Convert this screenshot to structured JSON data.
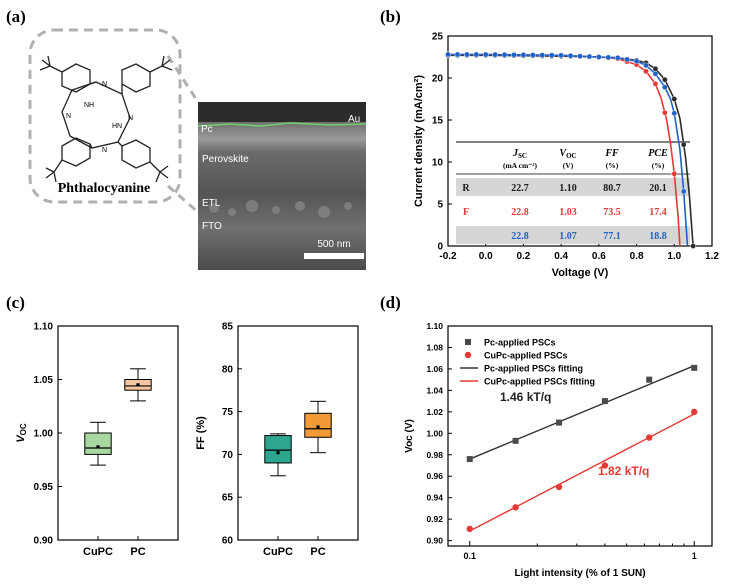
{
  "panel_labels": {
    "a": "(a)",
    "b": "(b)",
    "c": "(c)",
    "d": "(d)"
  },
  "molecule": {
    "name": "Phthalocyanine",
    "atom_nh": "NH",
    "atom_hn": "HN",
    "atom_n": "N"
  },
  "sem": {
    "labels": {
      "au": "Au",
      "pc": "Pc",
      "perovskite": "Perovskite",
      "etl": "ETL",
      "fto": "FTO"
    },
    "scale_bar": "500 nm"
  },
  "chart_data": [
    {
      "id": "jv",
      "type": "line",
      "xlabel": "Voltage (V)",
      "ylabel": "Current density (mA/cm²)",
      "xlim": [
        -0.2,
        1.2
      ],
      "ylim": [
        0,
        25
      ],
      "xticks": [
        "-0.2",
        "0.0",
        "0.2",
        "0.4",
        "0.6",
        "0.8",
        "1.0",
        "1.2"
      ],
      "yticks": [
        "0",
        "5",
        "10",
        "15",
        "20",
        "25"
      ],
      "series": [
        {
          "color": "#2b2b2b",
          "jsc": 22.7,
          "voc": 1.1,
          "x": [
            -0.2,
            0.0,
            0.2,
            0.4,
            0.6,
            0.7,
            0.8,
            0.85,
            0.9,
            0.95,
            1.0,
            1.03,
            1.06,
            1.08,
            1.1
          ],
          "y": [
            22.7,
            22.7,
            22.65,
            22.6,
            22.5,
            22.4,
            22.1,
            21.8,
            21.1,
            19.8,
            17.5,
            15.2,
            10.5,
            6.0,
            0.0
          ]
        },
        {
          "color": "#e53935",
          "jsc": 22.8,
          "voc": 1.03,
          "x": [
            -0.2,
            0.0,
            0.2,
            0.4,
            0.6,
            0.7,
            0.8,
            0.85,
            0.9,
            0.93,
            0.96,
            0.98,
            1.0,
            1.02,
            1.03
          ],
          "y": [
            22.8,
            22.8,
            22.75,
            22.7,
            22.5,
            22.3,
            21.6,
            20.8,
            19.3,
            17.6,
            15.0,
            12.2,
            8.6,
            3.5,
            0.0
          ]
        },
        {
          "color": "#1e62c9",
          "jsc": 22.8,
          "voc": 1.07,
          "x": [
            -0.2,
            0.0,
            0.2,
            0.4,
            0.6,
            0.7,
            0.8,
            0.85,
            0.9,
            0.95,
            0.98,
            1.0,
            1.03,
            1.05,
            1.07
          ],
          "y": [
            22.8,
            22.8,
            22.75,
            22.7,
            22.5,
            22.4,
            22.0,
            21.5,
            20.5,
            18.9,
            17.5,
            15.8,
            11.5,
            6.5,
            0.0
          ]
        }
      ],
      "table": {
        "headers": [
          {
            "main": "J",
            "sub": "SC",
            "unit": "(mA cm⁻²)"
          },
          {
            "main": "V",
            "sub": "OC",
            "unit": "(V)"
          },
          {
            "main": "FF",
            "sub": "",
            "unit": "(%)"
          },
          {
            "main": "PCE",
            "sub": "",
            "unit": "(%)"
          }
        ],
        "rows": [
          {
            "label": "R",
            "values": [
              "22.7",
              "1.10",
              "80.7",
              "20.1"
            ],
            "color": "#1b1b1b",
            "bg": "#d6d6d6"
          },
          {
            "label": "F",
            "values": [
              "22.8",
              "1.03",
              "73.5",
              "17.4"
            ],
            "color": "#e53935",
            "bg": "#ffffff"
          },
          {
            "label": "",
            "values": [
              "22.8",
              "1.07",
              "77.1",
              "18.8"
            ],
            "color": "#1e62c9",
            "bg": "#d6d6d6"
          }
        ]
      }
    },
    {
      "id": "voc_box",
      "type": "box",
      "ylabel": "V",
      "ylabel_sub": "OC",
      "ylim": [
        0.9,
        1.1
      ],
      "yticks": [
        "0.90",
        "0.95",
        "1.00",
        "1.05",
        "1.10"
      ],
      "categories": [
        "CuPC",
        "PC"
      ],
      "boxes": [
        {
          "min": 0.97,
          "q1": 0.98,
          "median": 0.986,
          "q3": 1.0,
          "max": 1.01,
          "mean": 0.987,
          "fill": "#a8d8a0"
        },
        {
          "min": 1.03,
          "q1": 1.04,
          "median": 1.044,
          "q3": 1.05,
          "max": 1.06,
          "mean": 1.045,
          "fill": "#f7c59f"
        }
      ]
    },
    {
      "id": "ff_box",
      "type": "box",
      "ylabel": "FF (%)",
      "ylim": [
        60,
        85
      ],
      "yticks": [
        "60",
        "65",
        "70",
        "75",
        "80",
        "85"
      ],
      "categories": [
        "CuPC",
        "PC"
      ],
      "boxes": [
        {
          "min": 67.5,
          "q1": 69.0,
          "median": 70.5,
          "q3": 72.2,
          "max": 72.4,
          "mean": 70.2,
          "fill": "#2ea58e"
        },
        {
          "min": 70.2,
          "q1": 72.0,
          "median": 73.0,
          "q3": 74.8,
          "max": 76.2,
          "mean": 73.2,
          "fill": "#f29a38"
        }
      ]
    },
    {
      "id": "voc_light",
      "type": "scatter",
      "xscale": "log",
      "xlabel": "Light intensity (% of 1 SUN)",
      "ylabel": "Voc (V)",
      "xlim": [
        0.08,
        1.2
      ],
      "ylim": [
        0.895,
        1.1
      ],
      "xticks": [
        {
          "v": 0.1,
          "label": "0.1"
        },
        {
          "v": 1,
          "label": "1"
        }
      ],
      "yticks": [
        "0.90",
        "0.92",
        "0.94",
        "0.96",
        "0.98",
        "1.00",
        "1.02",
        "1.04",
        "1.06",
        "1.08",
        "1.10"
      ],
      "legend": [
        "Pc-applied PSCs",
        "CuPc-applied PSCs",
        "Pc-applied PSCs fitting",
        "CuPc-applied PSCs fitting"
      ],
      "series": [
        {
          "name": "Pc-applied PSCs",
          "marker": "square",
          "color": "#4a4a4a",
          "x": [
            0.1,
            0.16,
            0.25,
            0.4,
            0.63,
            1.0
          ],
          "y": [
            0.976,
            0.993,
            1.01,
            1.03,
            1.05,
            1.061
          ]
        },
        {
          "name": "CuPc-applied PSCs",
          "marker": "circle",
          "color": "#e53935",
          "x": [
            0.1,
            0.16,
            0.25,
            0.4,
            0.63,
            1.0
          ],
          "y": [
            0.911,
            0.931,
            0.95,
            0.97,
            0.996,
            1.02
          ]
        }
      ],
      "fits": [
        {
          "name": "Pc-applied PSCs fitting",
          "color": "#333333",
          "y_at_0_1": 0.976,
          "y_at_1": 1.063
        },
        {
          "name": "CuPc-applied PSCs fitting",
          "color": "#e53935",
          "y_at_0_1": 0.909,
          "y_at_1": 1.018
        }
      ],
      "annotations": [
        {
          "text": "1.46 kT/q",
          "color": "#222222"
        },
        {
          "text": "1.82 kT/q",
          "color": "#e53935"
        }
      ]
    }
  ]
}
